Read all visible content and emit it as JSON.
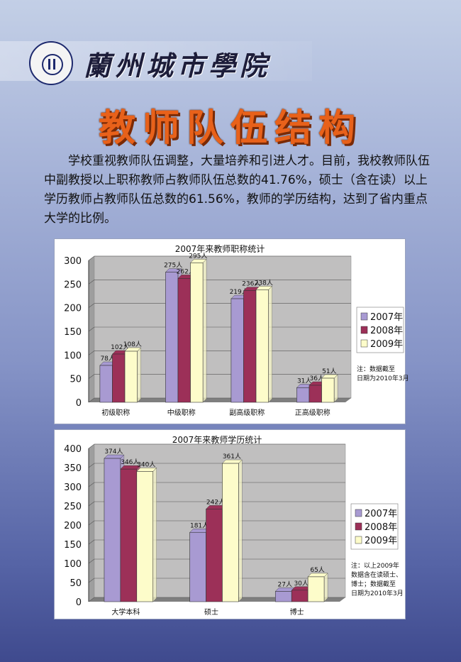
{
  "header": {
    "school_name": "蘭州城市學院",
    "title": "教师队伍结构"
  },
  "intro": "学校重视教师队伍调整，大量培养和引进人才。目前，我校教师队伍中副教授以上职称教师占教师队伍总数的41.76%，硕士（含在读）以上学历教师占教师队伍总数的61.56%，教师的学历结构，达到了省内重点大学的比例。",
  "colors": {
    "series": [
      "#a89ad2",
      "#9c3058",
      "#fdfcca"
    ],
    "plot_bg": "#c0bfbf"
  },
  "chart_data": [
    {
      "type": "bar",
      "title": "2007年来教师职称统计",
      "categories": [
        "初级职称",
        "中级职称",
        "副高级职称",
        "正高级职称"
      ],
      "series": [
        {
          "name": "2007年",
          "values": [
            78,
            275,
            219,
            31
          ]
        },
        {
          "name": "2008年",
          "values": [
            102,
            262,
            236,
            36
          ]
        },
        {
          "name": "2009年",
          "values": [
            108,
            295,
            238,
            51
          ]
        }
      ],
      "data_labels": [
        [
          "78人",
          "275人",
          "219人",
          "31人"
        ],
        [
          "102人",
          "262人",
          "236人",
          "36人"
        ],
        [
          "108人",
          "295人",
          "238人",
          "51人"
        ]
      ],
      "ylim": [
        0,
        300
      ],
      "yticks": [
        0,
        50,
        100,
        150,
        200,
        250,
        300
      ],
      "legend": "right",
      "note": [
        "注：数据截至",
        "日期为2010年3月"
      ]
    },
    {
      "type": "bar",
      "title": "2007年来教师学历统计",
      "categories": [
        "大学本科",
        "硕士",
        "博士"
      ],
      "series": [
        {
          "name": "2007年",
          "values": [
            374,
            181,
            27
          ]
        },
        {
          "name": "2008年",
          "values": [
            346,
            242,
            30
          ]
        },
        {
          "name": "2009年",
          "values": [
            340,
            361,
            65
          ]
        }
      ],
      "data_labels": [
        [
          "374人",
          "181人",
          "27人"
        ],
        [
          "346人",
          "242人",
          "30人"
        ],
        [
          "340人",
          "361人",
          "65人"
        ]
      ],
      "ylim": [
        0,
        400
      ],
      "yticks": [
        0,
        50,
        100,
        150,
        200,
        250,
        300,
        350,
        400
      ],
      "legend": "right",
      "note": [
        "注：以上2009年",
        "数据含在读硕士、",
        "博士；数据截至",
        "日期为2010年3月"
      ]
    }
  ]
}
